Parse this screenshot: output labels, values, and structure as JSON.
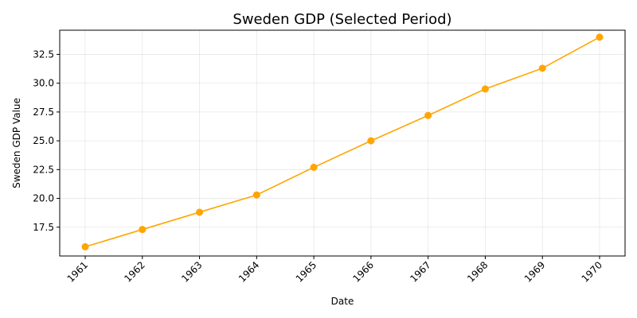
{
  "chart_data": {
    "type": "line",
    "title": "Sweden GDP (Selected Period)",
    "xlabel": "Date",
    "ylabel": "Sweden GDP Value",
    "x": [
      "1961",
      "1962",
      "1963",
      "1964",
      "1965",
      "1966",
      "1967",
      "1968",
      "1969",
      "1970"
    ],
    "series": [
      {
        "values": [
          15.8,
          17.3,
          18.8,
          20.3,
          22.7,
          25.0,
          27.2,
          29.5,
          31.3,
          34.0
        ],
        "color": "#FFA500",
        "marker": "circle"
      }
    ],
    "yticks": [
      17.5,
      20.0,
      22.5,
      25.0,
      27.5,
      30.0,
      32.5
    ],
    "ytick_labels": [
      "17.5",
      "20.0",
      "22.5",
      "25.0",
      "27.5",
      "30.0",
      "32.5"
    ],
    "ylim": [
      15.0,
      34.6
    ],
    "grid": true,
    "xtick_rotation": 45
  }
}
